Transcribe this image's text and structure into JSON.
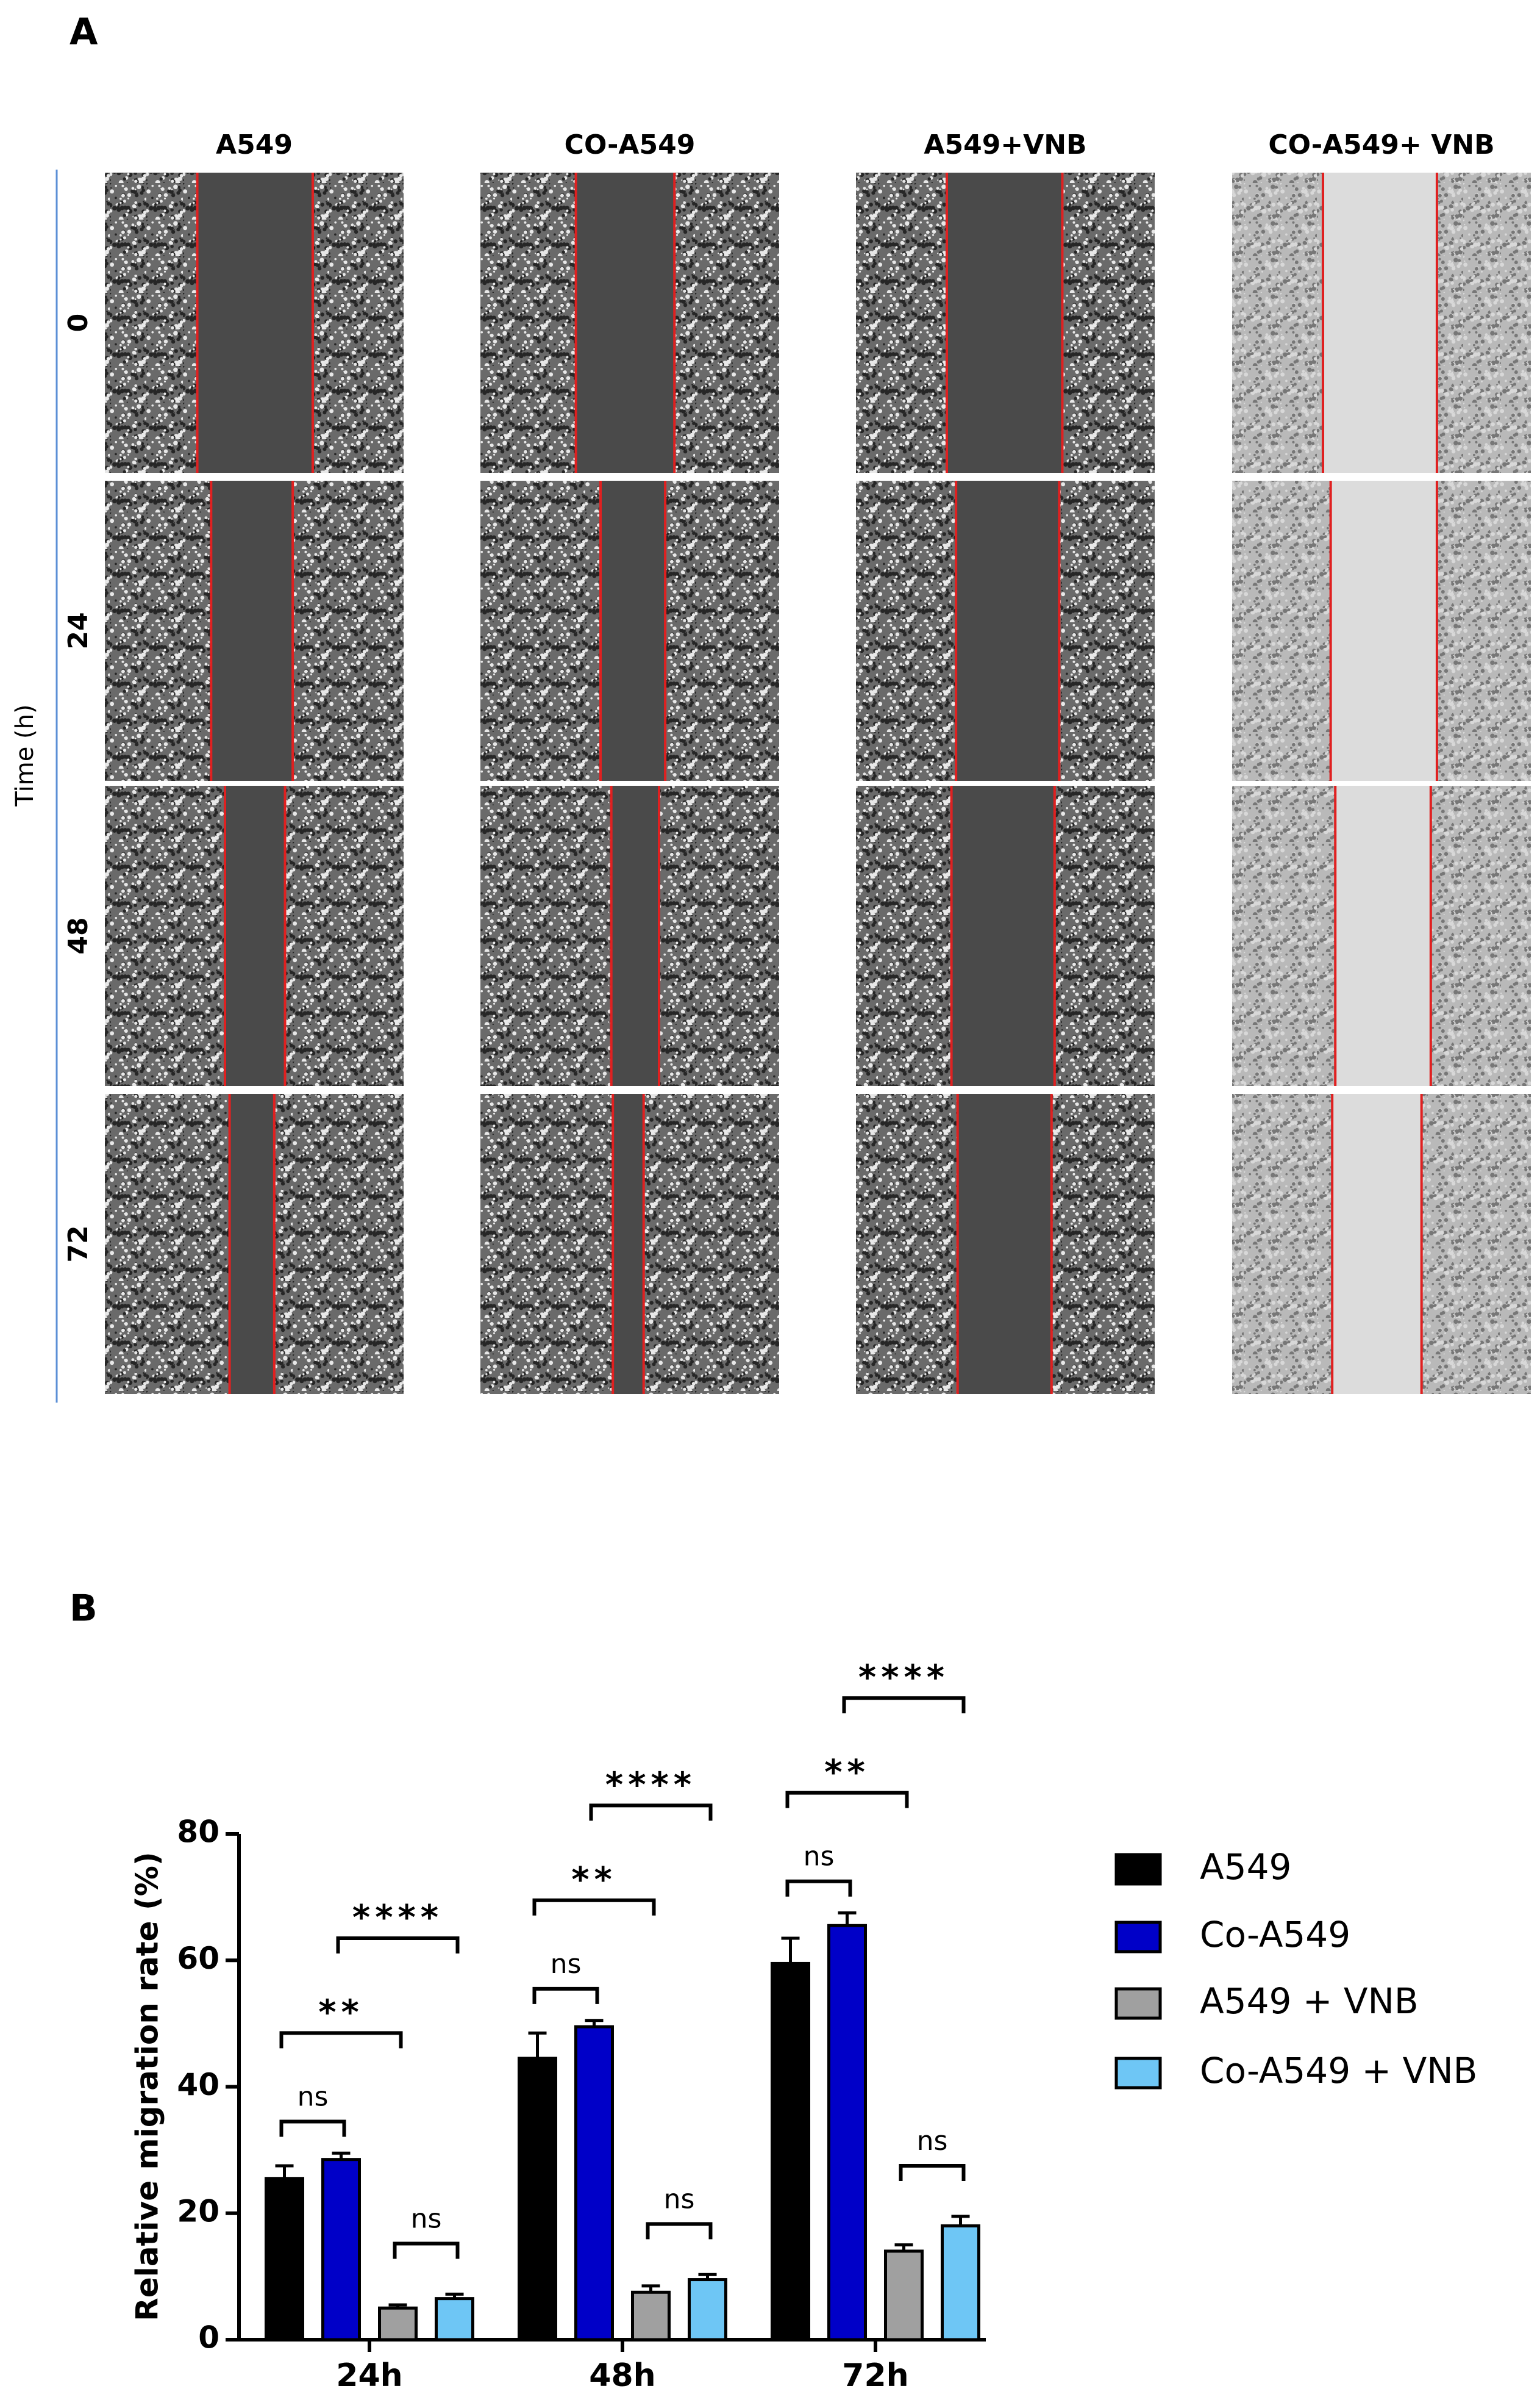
{
  "panel_a": {
    "label": "A",
    "columns": [
      "A549",
      "CO-A549",
      "A549+VNB",
      "CO-A549+ VNB"
    ],
    "rows": [
      "0",
      "24",
      "48",
      "72"
    ],
    "ylabel": "Time (h)"
  },
  "chart_data": {
    "type": "bar",
    "panel_label": "B",
    "ylabel": "Relative migration rate (%)",
    "categories": [
      "24h",
      "48h",
      "72h"
    ],
    "series": [
      {
        "name": "A549",
        "color": "#000000",
        "values": [
          25.5,
          44.5,
          59.5
        ],
        "errors": [
          2,
          4,
          4
        ]
      },
      {
        "name": "Co-A549",
        "color": "#0000c8",
        "values": [
          28.5,
          49.5,
          65.5
        ],
        "errors": [
          1,
          1,
          2
        ]
      },
      {
        "name": "A549 + VNB",
        "color": "#a0a0a0",
        "values": [
          5,
          7.5,
          14
        ],
        "errors": [
          0.5,
          1,
          1
        ]
      },
      {
        "name": "Co-A549 + VNB",
        "color": "#6ec6f5",
        "values": [
          6.5,
          9.5,
          18
        ],
        "errors": [
          0.7,
          0.8,
          1.5
        ]
      }
    ],
    "annotations": [
      [
        "ns",
        "**",
        "****",
        "ns"
      ],
      [
        "ns",
        "**",
        "****",
        "ns"
      ],
      [
        "ns",
        "**",
        "****",
        "ns"
      ]
    ],
    "ylim": [
      0,
      80
    ],
    "yticks": [
      0,
      20,
      40,
      60,
      80
    ],
    "legend": "right"
  }
}
